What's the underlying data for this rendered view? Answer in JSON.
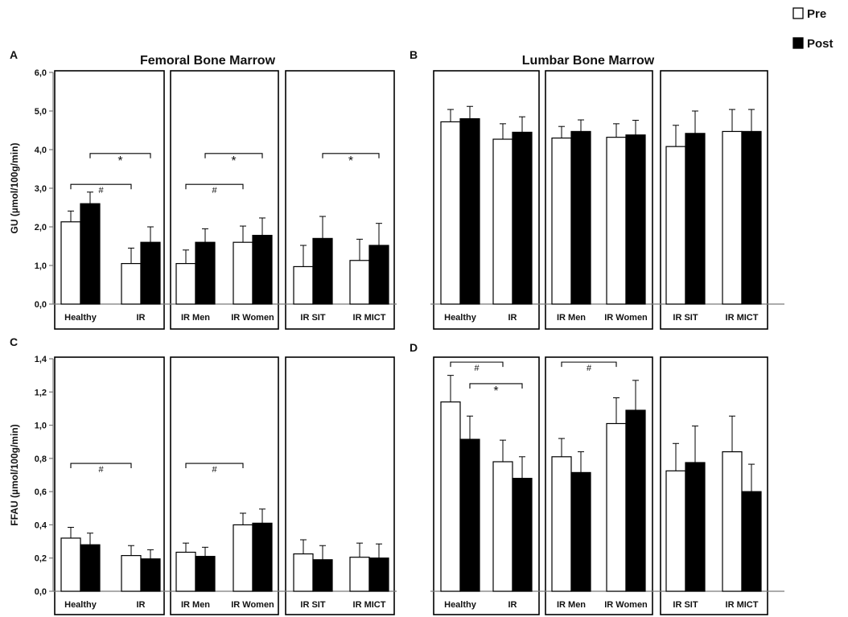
{
  "legend": {
    "placement": "top-right",
    "items": [
      {
        "label": "Pre",
        "color": "#ffffff"
      },
      {
        "label": "Post",
        "color": "#000000"
      }
    ]
  },
  "chart_data": [
    {
      "type": "bar",
      "panel": "A",
      "title": "Femoral Bone Marrow",
      "ylabel": "GU (µmol/100g/min)",
      "ylim": [
        0,
        6
      ],
      "yticks": [
        "0,0",
        "1,0",
        "2,0",
        "3,0",
        "4,0",
        "5,0",
        "6,0"
      ],
      "groups": [
        [
          "Healthy",
          "IR"
        ],
        [
          "IR Men",
          "IR Women"
        ],
        [
          "IR SIT",
          "IR MICT"
        ]
      ],
      "categories": [
        "Healthy",
        "IR",
        "IR Men",
        "IR Women",
        "IR SIT",
        "IR MICT"
      ],
      "series": [
        {
          "name": "Pre",
          "values": [
            2.13,
            1.05,
            1.05,
            1.6,
            0.97,
            1.13
          ],
          "errors": [
            0.28,
            0.4,
            0.35,
            0.42,
            0.55,
            0.55
          ]
        },
        {
          "name": "Post",
          "values": [
            2.6,
            1.6,
            1.6,
            1.78,
            1.7,
            1.52
          ],
          "errors": [
            0.3,
            0.4,
            0.35,
            0.45,
            0.57,
            0.57
          ]
        }
      ],
      "annotations": [
        {
          "symbol": "#",
          "from": "Healthy.Pre",
          "to": "IR.Pre",
          "y": 3.1
        },
        {
          "symbol": "*",
          "from": "Healthy.Post",
          "to": "IR.Post",
          "y": 3.9
        },
        {
          "symbol": "#",
          "from": "IR Men.Pre",
          "to": "IR Women.Pre",
          "y": 3.1
        },
        {
          "symbol": "*",
          "from": "IR Men.Post",
          "to": "IR Women.Post",
          "y": 3.9
        },
        {
          "symbol": "*",
          "from": "IR SIT.Post",
          "to": "IR MICT.Post",
          "y": 3.9
        }
      ]
    },
    {
      "type": "bar",
      "panel": "B",
      "title": "Lumbar Bone Marrow",
      "ylabel": "",
      "ylim": [
        0,
        6
      ],
      "yticks": [],
      "groups": [
        [
          "Healthy",
          "IR"
        ],
        [
          "IR Men",
          "IR Women"
        ],
        [
          "IR SIT",
          "IR MICT"
        ]
      ],
      "categories": [
        "Healthy",
        "IR",
        "IR Men",
        "IR Women",
        "IR SIT",
        "IR MICT"
      ],
      "series": [
        {
          "name": "Pre",
          "values": [
            4.72,
            4.27,
            4.3,
            4.32,
            4.08,
            4.47
          ],
          "errors": [
            0.32,
            0.4,
            0.3,
            0.35,
            0.55,
            0.57
          ]
        },
        {
          "name": "Post",
          "values": [
            4.8,
            4.45,
            4.47,
            4.38,
            4.42,
            4.47
          ],
          "errors": [
            0.32,
            0.4,
            0.3,
            0.38,
            0.58,
            0.57
          ]
        }
      ],
      "annotations": []
    },
    {
      "type": "bar",
      "panel": "C",
      "title": "",
      "ylabel": "FFAU (µmol/100g/min)",
      "ylim": [
        0,
        1.4
      ],
      "yticks": [
        "0,0",
        "0,2",
        "0,4",
        "0,6",
        "0,8",
        "1,0",
        "1,2",
        "1,4"
      ],
      "groups": [
        [
          "Healthy",
          "IR"
        ],
        [
          "IR Men",
          "IR Women"
        ],
        [
          "IR SIT",
          "IR MICT"
        ]
      ],
      "categories": [
        "Healthy",
        "IR",
        "IR Men",
        "IR Women",
        "IR SIT",
        "IR MICT"
      ],
      "series": [
        {
          "name": "Pre",
          "values": [
            0.32,
            0.215,
            0.235,
            0.4,
            0.225,
            0.205
          ],
          "errors": [
            0.065,
            0.06,
            0.055,
            0.07,
            0.085,
            0.085
          ]
        },
        {
          "name": "Post",
          "values": [
            0.28,
            0.195,
            0.21,
            0.41,
            0.19,
            0.2
          ],
          "errors": [
            0.07,
            0.055,
            0.055,
            0.085,
            0.085,
            0.085
          ]
        }
      ],
      "annotations": [
        {
          "symbol": "#",
          "from": "Healthy.Pre",
          "to": "IR.Pre",
          "y": 0.77
        },
        {
          "symbol": "#",
          "from": "IR Men.Pre",
          "to": "IR Women.Pre",
          "y": 0.77
        }
      ]
    },
    {
      "type": "bar",
      "panel": "D",
      "title": "",
      "ylabel": "",
      "ylim": [
        0,
        1.4
      ],
      "yticks": [],
      "groups": [
        [
          "Healthy",
          "IR"
        ],
        [
          "IR Men",
          "IR Women"
        ],
        [
          "IR SIT",
          "IR MICT"
        ]
      ],
      "categories": [
        "Healthy",
        "IR",
        "IR Men",
        "IR Women",
        "IR SIT",
        "IR MICT"
      ],
      "series": [
        {
          "name": "Pre",
          "values": [
            1.14,
            0.78,
            0.81,
            1.01,
            0.725,
            0.84
          ],
          "errors": [
            0.16,
            0.13,
            0.11,
            0.155,
            0.165,
            0.215
          ]
        },
        {
          "name": "Post",
          "values": [
            0.915,
            0.68,
            0.715,
            1.09,
            0.775,
            0.6
          ],
          "errors": [
            0.14,
            0.13,
            0.125,
            0.18,
            0.22,
            0.165
          ]
        }
      ],
      "annotations": [
        {
          "symbol": "#",
          "from": "Healthy.Pre",
          "to": "IR.Pre",
          "y": 1.38
        },
        {
          "symbol": "*",
          "from": "Healthy.Post",
          "to": "IR.Post",
          "y": 1.25
        },
        {
          "symbol": "#",
          "from": "IR Men.Pre",
          "to": "IR Women.Pre",
          "y": 1.38
        }
      ]
    }
  ]
}
